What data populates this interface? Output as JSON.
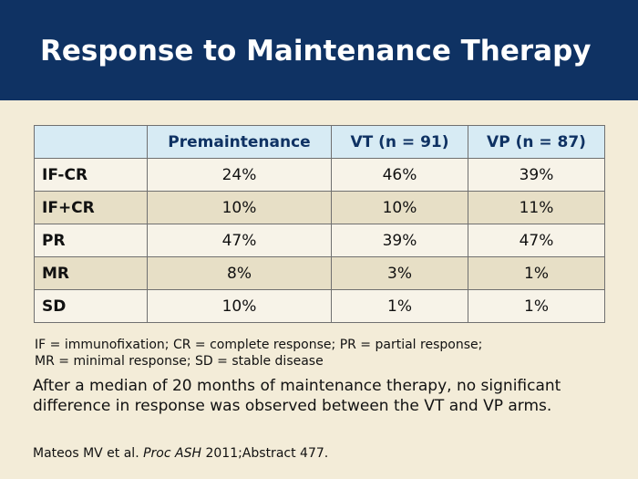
{
  "slide": {
    "title": "Response to Maintenance Therapy"
  },
  "table": {
    "headers": [
      "",
      "Premaintenance",
      "VT (n = 91)",
      "VP (n = 87)"
    ],
    "rows": [
      {
        "label": "IF-CR",
        "values": [
          "24%",
          "46%",
          "39%"
        ]
      },
      {
        "label": "IF+CR",
        "values": [
          "10%",
          "10%",
          "11%"
        ]
      },
      {
        "label": "PR",
        "values": [
          "47%",
          "39%",
          "47%"
        ]
      },
      {
        "label": "MR",
        "values": [
          "8%",
          "3%",
          "1%"
        ]
      },
      {
        "label": "SD",
        "values": [
          "10%",
          "1%",
          "1%"
        ]
      }
    ]
  },
  "footnote": {
    "line1": "IF = immunofixation; CR = complete response; PR = partial response;",
    "line2": "MR = minimal response; SD = stable disease"
  },
  "note": "After a median of 20 months of maintenance therapy, no significant difference in response was observed between the VT and VP arms.",
  "citation": {
    "authors": "Mateos MV et al. ",
    "journal": "Proc ASH",
    "rest": " 2011;Abstract 477."
  },
  "colors": {
    "header_bg": "#0f3263",
    "background": "#f3ecd8",
    "table_header_bg": "#d7ebf4",
    "row_light": "#f7f3e8",
    "row_dark": "#e7dfc6"
  }
}
